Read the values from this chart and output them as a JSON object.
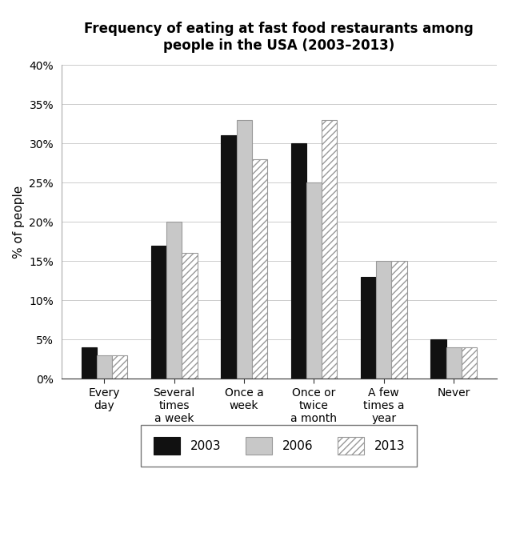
{
  "title": "Frequency of eating at fast food restaurants among\npeople in the USA (2003–2013)",
  "ylabel": "% of people",
  "categories": [
    "Every\nday",
    "Several\ntimes\na week",
    "Once a\nweek",
    "Once or\ntwice\na month",
    "A few\ntimes a\nyear",
    "Never"
  ],
  "years": [
    "2003",
    "2006",
    "2013"
  ],
  "values": {
    "2003": [
      4,
      17,
      31,
      30,
      13,
      5
    ],
    "2006": [
      3,
      20,
      33,
      25,
      15,
      4
    ],
    "2013": [
      3,
      16,
      28,
      33,
      15,
      4
    ]
  },
  "bar_colors": {
    "2003": "#111111",
    "2006": "#c8c8c8",
    "2013": "#ffffff"
  },
  "bar_hatches": {
    "2003": "",
    "2006": "",
    "2013": "////"
  },
  "bar_edgecolors": {
    "2003": "#111111",
    "2006": "#999999",
    "2013": "#999999"
  },
  "ylim": [
    0,
    40
  ],
  "yticks": [
    0,
    5,
    10,
    15,
    20,
    25,
    30,
    35,
    40
  ],
  "ytick_labels": [
    "0%",
    "5%",
    "10%",
    "15%",
    "20%",
    "25%",
    "30%",
    "35%",
    "40%"
  ],
  "title_fontsize": 12,
  "axis_label_fontsize": 11,
  "tick_fontsize": 10,
  "legend_fontsize": 11,
  "bar_width": 0.22,
  "background_color": "#ffffff"
}
